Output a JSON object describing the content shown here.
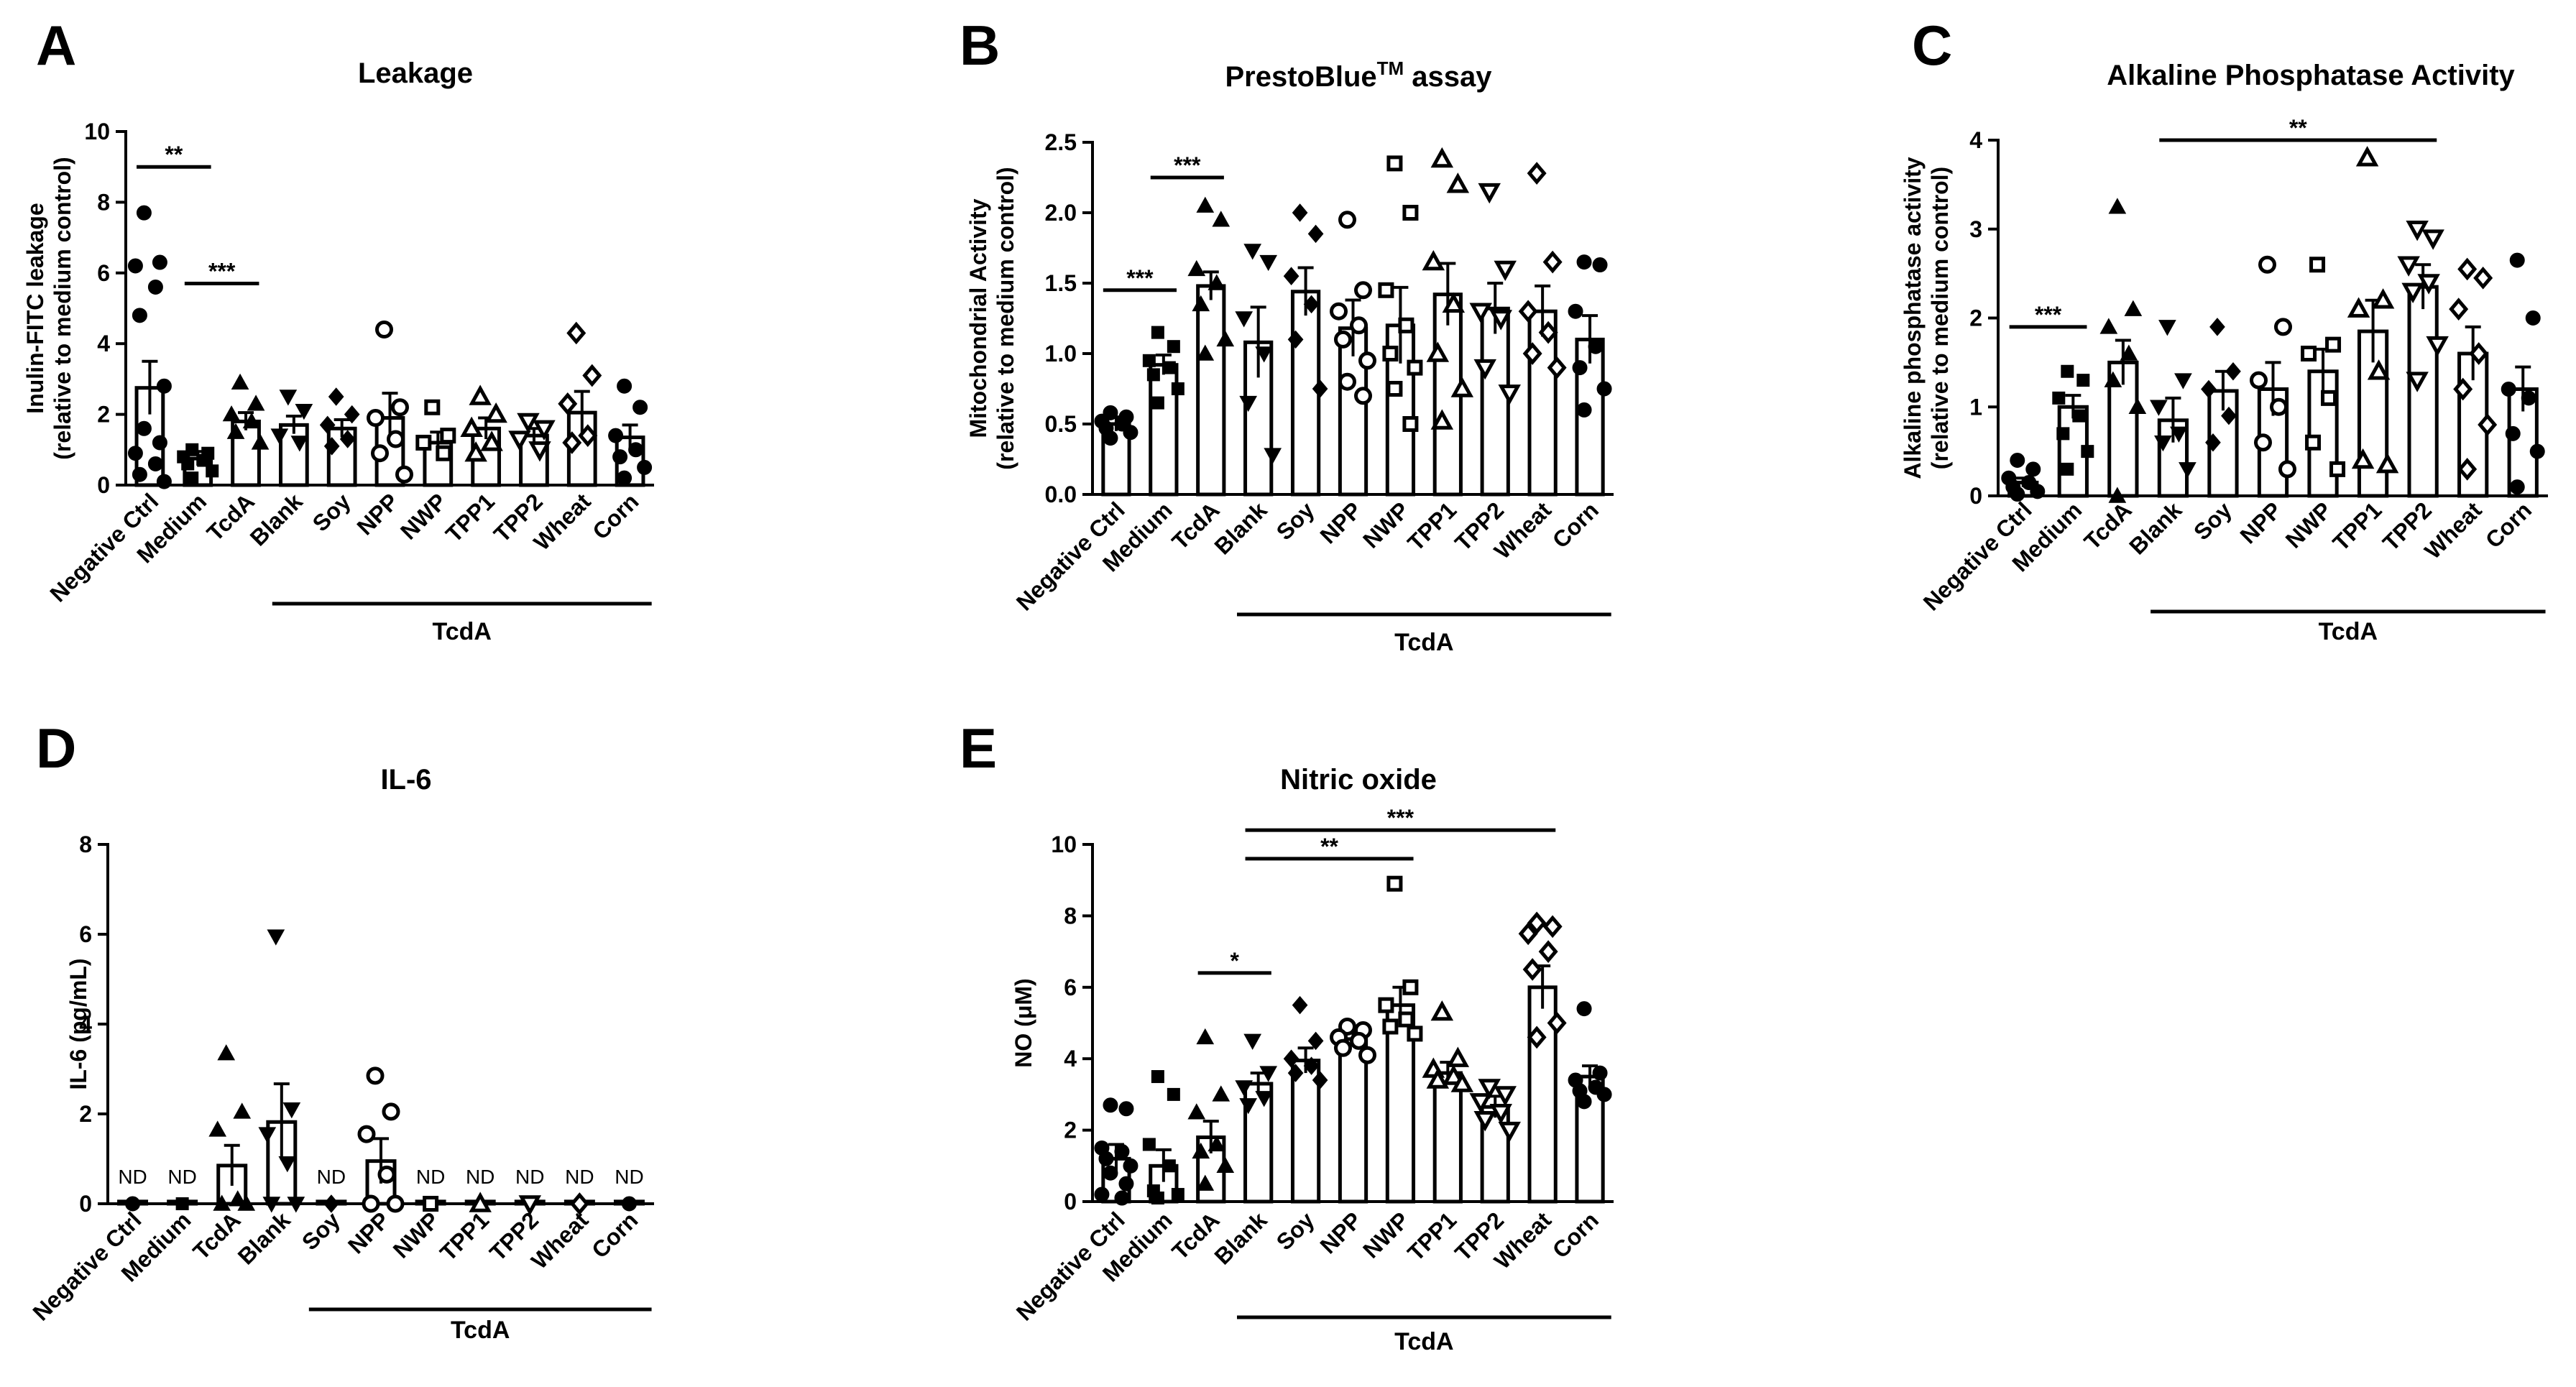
{
  "chart_data": [
    {
      "panel": "A",
      "type": "bar",
      "title": "Leakage",
      "ylabel": [
        "Inulin-FITC leakage",
        "(relative to medium control)"
      ],
      "ylim": [
        0,
        10
      ],
      "yticks": [
        0,
        2,
        4,
        6,
        8,
        10
      ],
      "categories": [
        "Negative Ctrl",
        "Medium",
        "TcdA",
        "Blank",
        "Soy",
        "NPP",
        "NWP",
        "TPP1",
        "TPP2",
        "Wheat",
        "Corn"
      ],
      "markers": [
        "circle",
        "square",
        "triangle",
        "tri-down",
        "diamond",
        "circle-open",
        "square-open",
        "triangle-open",
        "tri-down-open",
        "diamond-open",
        "circle"
      ],
      "values": [
        2.75,
        0.75,
        1.8,
        1.7,
        1.6,
        1.9,
        1.2,
        1.6,
        1.4,
        2.05,
        1.35
      ],
      "errors": [
        0.75,
        0.2,
        0.25,
        0.25,
        0.25,
        0.7,
        0.3,
        0.3,
        0.2,
        0.6,
        0.35
      ],
      "points": [
        [
          7.7,
          6.3,
          6.2,
          5.6,
          4.8,
          2.8,
          1.6,
          1.2,
          0.9,
          0.6,
          0.3,
          0.1
        ],
        [
          1.0,
          0.9,
          0.8,
          0.7,
          0.6,
          0.4,
          0.2
        ],
        [
          2.9,
          2.3,
          2.0,
          1.8,
          1.5,
          1.2
        ],
        [
          2.5,
          2.1,
          1.4,
          1.2
        ],
        [
          2.5,
          2.0,
          1.7,
          1.3,
          1.1
        ],
        [
          4.4,
          2.2,
          1.9,
          1.3,
          0.9,
          0.3
        ],
        [
          2.2,
          1.4,
          1.2,
          0.9
        ],
        [
          2.5,
          2.0,
          1.6,
          1.2,
          0.9
        ],
        [
          1.8,
          1.6,
          1.3,
          1.0
        ],
        [
          4.3,
          3.1,
          2.3,
          1.4,
          1.2
        ],
        [
          2.8,
          2.2,
          1.4,
          1.0,
          0.8,
          0.5,
          0.2
        ]
      ],
      "group_label": "TcdA",
      "group_range": [
        3,
        10
      ],
      "significance": [
        {
          "from": 0,
          "to": 1,
          "y": 9.0,
          "label": "**"
        },
        {
          "from": 1,
          "to": 2,
          "y": 5.7,
          "label": "***"
        }
      ]
    },
    {
      "panel": "B",
      "type": "bar",
      "title": "PrestoBlue",
      "title_sup": "TM",
      "title_suffix": " assay",
      "ylabel": [
        "Mitochondrial Activity",
        "(relative to medium control)"
      ],
      "ylim": [
        0,
        2.5
      ],
      "yticks": [
        0.0,
        0.5,
        1.0,
        1.5,
        2.0,
        2.5
      ],
      "categories": [
        "Negative Ctrl",
        "Medium",
        "TcdA",
        "Blank",
        "Soy",
        "NPP",
        "NWP",
        "TPP1",
        "TPP2",
        "Wheat",
        "Corn"
      ],
      "markers": [
        "circle",
        "square",
        "triangle",
        "tri-down",
        "diamond",
        "circle-open",
        "square-open",
        "triangle-open",
        "tri-down-open",
        "diamond-open",
        "circle"
      ],
      "values": [
        0.5,
        0.92,
        1.48,
        1.08,
        1.44,
        1.18,
        1.2,
        1.42,
        1.32,
        1.3,
        1.1
      ],
      "errors": [
        0.05,
        0.07,
        0.1,
        0.25,
        0.17,
        0.2,
        0.27,
        0.22,
        0.18,
        0.18,
        0.17
      ],
      "points": [
        [
          0.58,
          0.55,
          0.52,
          0.5,
          0.47,
          0.44,
          0.4
        ],
        [
          1.15,
          1.05,
          0.95,
          0.9,
          0.85,
          0.75,
          0.65
        ],
        [
          2.05,
          1.95,
          1.6,
          1.5,
          1.35,
          1.1,
          1.0
        ],
        [
          1.73,
          1.65,
          1.25,
          1.0,
          0.65,
          0.28
        ],
        [
          2.0,
          1.85,
          1.55,
          1.35,
          1.1,
          0.75
        ],
        [
          1.95,
          1.45,
          1.3,
          1.2,
          1.1,
          0.95,
          0.8,
          0.7
        ],
        [
          2.35,
          2.0,
          1.45,
          1.2,
          1.0,
          0.9,
          0.75,
          0.5
        ],
        [
          2.38,
          2.2,
          1.65,
          1.35,
          1.0,
          0.75,
          0.52
        ],
        [
          2.15,
          1.6,
          1.3,
          1.25,
          0.9,
          0.72
        ],
        [
          2.28,
          1.65,
          1.3,
          1.15,
          1.0,
          0.9
        ],
        [
          1.65,
          1.63,
          1.3,
          1.05,
          0.9,
          0.75,
          0.6
        ]
      ],
      "group_label": "TcdA",
      "group_range": [
        3,
        10
      ],
      "significance": [
        {
          "from": 0,
          "to": 1,
          "y": 1.45,
          "label": "***"
        },
        {
          "from": 1,
          "to": 2,
          "y": 2.25,
          "label": "***"
        }
      ]
    },
    {
      "panel": "C",
      "type": "bar",
      "title": "Alkaline Phosphatase Activity",
      "ylabel": [
        "Alkaline phosphatase activity",
        "(relative to medium control)"
      ],
      "ylim": [
        0,
        4
      ],
      "yticks": [
        0,
        1,
        2,
        3,
        4
      ],
      "categories": [
        "Negative Ctrl",
        "Medium",
        "TcdA",
        "Blank",
        "Soy",
        "NPP",
        "NWP",
        "TPP1",
        "TPP2",
        "Wheat",
        "Corn"
      ],
      "markers": [
        "circle",
        "square",
        "triangle",
        "tri-down",
        "diamond",
        "circle-open",
        "square-open",
        "triangle-open",
        "tri-down-open",
        "diamond-open",
        "circle"
      ],
      "values": [
        0.15,
        1.0,
        1.5,
        0.85,
        1.18,
        1.2,
        1.4,
        1.85,
        2.35,
        1.6,
        1.2
      ],
      "errors": [
        0.05,
        0.13,
        0.25,
        0.25,
        0.22,
        0.3,
        0.25,
        0.35,
        0.25,
        0.3,
        0.25
      ],
      "points": [
        [
          0.4,
          0.3,
          0.2,
          0.15,
          0.1,
          0.05,
          0.02
        ],
        [
          1.4,
          1.3,
          1.1,
          0.9,
          0.7,
          0.5,
          0.3
        ],
        [
          3.25,
          2.1,
          1.9,
          1.6,
          1.3,
          1.0,
          0.0
        ],
        [
          1.9,
          1.3,
          1.0,
          0.7,
          0.6,
          0.3
        ],
        [
          1.9,
          1.4,
          1.2,
          0.9,
          0.6
        ],
        [
          2.6,
          1.9,
          1.3,
          1.0,
          0.6,
          0.3
        ],
        [
          2.6,
          1.7,
          1.6,
          1.1,
          0.6,
          0.3
        ],
        [
          3.8,
          2.2,
          2.1,
          1.4,
          0.4,
          0.35
        ],
        [
          3.0,
          2.9,
          2.6,
          2.4,
          2.3,
          1.7,
          1.3
        ],
        [
          2.55,
          2.45,
          2.1,
          1.6,
          1.2,
          0.8,
          0.3
        ],
        [
          2.65,
          2.0,
          1.2,
          1.1,
          0.7,
          0.5,
          0.1
        ]
      ],
      "group_label": "TcdA",
      "group_range": [
        3,
        10
      ],
      "significance": [
        {
          "from": 0,
          "to": 1,
          "y": 1.9,
          "label": "***"
        },
        {
          "from": 3,
          "to": 8,
          "y": 4.0,
          "label": "**"
        }
      ]
    },
    {
      "panel": "D",
      "type": "bar",
      "title": "IL-6",
      "ylabel": [
        "IL-6 (pg/mL)"
      ],
      "ylim": [
        0,
        8
      ],
      "yticks": [
        0,
        2,
        4,
        6,
        8
      ],
      "categories": [
        "Negative Ctrl",
        "Medium",
        "TcdA",
        "Blank",
        "Soy",
        "NPP",
        "NWP",
        "TPP1",
        "TPP2",
        "Wheat",
        "Corn"
      ],
      "markers": [
        "circle",
        "square",
        "triangle",
        "tri-down",
        "diamond",
        "circle-open",
        "square-open",
        "triangle-open",
        "tri-down-open",
        "diamond-open",
        "circle"
      ],
      "values": [
        0.05,
        0.05,
        0.85,
        1.82,
        0.05,
        0.95,
        0.05,
        0.05,
        0.05,
        0.05,
        0.05
      ],
      "errors": [
        0.0,
        0.0,
        0.45,
        0.85,
        0.0,
        0.5,
        0.0,
        0.0,
        0.0,
        0.0,
        0.0
      ],
      "points": [
        [
          0.0
        ],
        [
          0.0
        ],
        [
          3.35,
          2.05,
          1.65,
          0.1,
          0.0,
          0.0
        ],
        [
          5.95,
          2.1,
          1.55,
          0.9,
          0.0,
          0.0
        ],
        [
          0.0
        ],
        [
          2.85,
          2.05,
          1.55,
          0.65,
          0.0,
          0.0
        ],
        [
          0.0
        ],
        [
          0.0
        ],
        [
          0.0
        ],
        [
          0.0
        ],
        [
          0.0
        ]
      ],
      "nd_labels": [
        "ND",
        "ND",
        null,
        null,
        "ND",
        null,
        "ND",
        "ND",
        "ND",
        "ND",
        "ND"
      ],
      "group_label": "TcdA",
      "group_range": [
        4,
        10
      ],
      "significance": []
    },
    {
      "panel": "E",
      "type": "bar",
      "title": "Nitric oxide",
      "ylabel": [
        "NO (μM)"
      ],
      "ylim": [
        0,
        10
      ],
      "yticks": [
        0,
        2,
        4,
        6,
        8,
        10
      ],
      "categories": [
        "Negative Ctrl",
        "Medium",
        "TcdA",
        "Blank",
        "Soy",
        "NPP",
        "NWP",
        "TPP1",
        "TPP2",
        "Wheat",
        "Corn"
      ],
      "markers": [
        "circle",
        "square",
        "triangle",
        "tri-down",
        "diamond",
        "circle-open",
        "square-open",
        "triangle-open",
        "tri-down-open",
        "diamond-open",
        "circle"
      ],
      "values": [
        1.2,
        1.0,
        1.8,
        3.3,
        3.95,
        4.55,
        5.5,
        3.6,
        2.65,
        6.0,
        3.5
      ],
      "errors": [
        0.4,
        0.45,
        0.45,
        0.3,
        0.35,
        0.2,
        0.5,
        0.3,
        0.3,
        0.6,
        0.3
      ],
      "points": [
        [
          2.7,
          2.6,
          1.5,
          1.4,
          1.2,
          1.0,
          0.8,
          0.5,
          0.2,
          0.1
        ],
        [
          3.5,
          3.0,
          1.6,
          1.0,
          0.3,
          0.2,
          0.1
        ],
        [
          4.6,
          3.0,
          2.5,
          1.6,
          1.4,
          1.0,
          0.5
        ],
        [
          4.5,
          3.6,
          3.2,
          2.9,
          2.7
        ],
        [
          5.5,
          4.5,
          4.0,
          3.8,
          3.6,
          3.4
        ],
        [
          4.9,
          4.8,
          4.6,
          4.5,
          4.3,
          4.1
        ],
        [
          8.9,
          6.0,
          5.5,
          5.1,
          4.9,
          4.7
        ],
        [
          5.3,
          4.0,
          3.7,
          3.5,
          3.4,
          3.3
        ],
        [
          3.2,
          3.0,
          2.8,
          2.5,
          2.3,
          2.0
        ],
        [
          7.8,
          7.7,
          7.5,
          7.0,
          6.5,
          5.0,
          4.6
        ],
        [
          5.4,
          3.6,
          3.4,
          3.2,
          3.1,
          3.0,
          2.8
        ]
      ],
      "group_label": "TcdA",
      "group_range": [
        3,
        10
      ],
      "significance": [
        {
          "from": 2,
          "to": 3,
          "y": 6.4,
          "label": "*"
        },
        {
          "from": 3,
          "to": 6,
          "y": 9.6,
          "label": "**"
        },
        {
          "from": 3,
          "to": 9,
          "y": 10.4,
          "label": "***"
        }
      ]
    }
  ]
}
